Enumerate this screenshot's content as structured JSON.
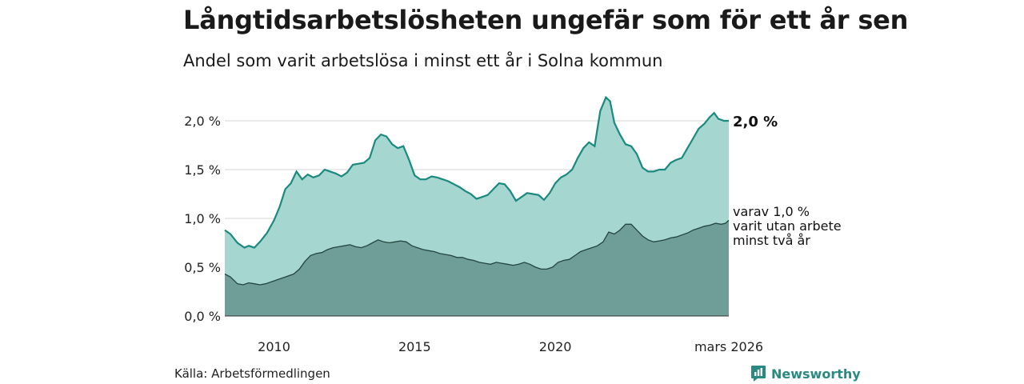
{
  "title": "Långtidsarbetslösheten ungefär som för ett år sen",
  "subtitle": "Andel som varit arbetslösa i minst ett år i Solna kommun",
  "source": "Källa: Arbetsförmedlingen",
  "brand": "Newsworthy",
  "colors": {
    "total_fill": "#a6d6d0",
    "total_line": "#1a8a7e",
    "sub_fill": "#6e9e97",
    "sub_line": "#234540",
    "grid": "#d6d6d6",
    "brand": "#2a8a80"
  },
  "annotations": {
    "total_end": "2,0 %",
    "sub_line1": "varav 1,0 %",
    "sub_line2": "varit utan arbete",
    "sub_line3": "minst två år"
  },
  "chart_data": {
    "type": "area",
    "title": "Långtidsarbetslösheten ungefär som för ett år sen",
    "subtitle": "Andel som varit arbetslösa i minst ett år i Solna kommun",
    "ylim": [
      0,
      2.3
    ],
    "y_ticks": [
      {
        "value": 0.0,
        "label": "0,0 %"
      },
      {
        "value": 0.5,
        "label": "0,5 %"
      },
      {
        "value": 1.0,
        "label": "1,0 %"
      },
      {
        "value": 1.5,
        "label": "1,5 %"
      },
      {
        "value": 2.0,
        "label": "2,0 %"
      }
    ],
    "xlim": [
      2008.25,
      2026.25
    ],
    "x_ticks": [
      {
        "value": 2010,
        "label": "2010"
      },
      {
        "value": 2015,
        "label": "2015"
      },
      {
        "value": 2020,
        "label": "2020"
      },
      {
        "value": 2026.17,
        "label": "mars 2026"
      }
    ],
    "series": [
      {
        "name": "Minst ett år",
        "points": [
          [
            2008.25,
            0.88
          ],
          [
            2008.45,
            0.84
          ],
          [
            2008.7,
            0.75
          ],
          [
            2008.95,
            0.7
          ],
          [
            2009.1,
            0.72
          ],
          [
            2009.3,
            0.7
          ],
          [
            2009.5,
            0.76
          ],
          [
            2009.75,
            0.85
          ],
          [
            2010.0,
            0.98
          ],
          [
            2010.2,
            1.12
          ],
          [
            2010.4,
            1.3
          ],
          [
            2010.6,
            1.36
          ],
          [
            2010.8,
            1.48
          ],
          [
            2011.0,
            1.4
          ],
          [
            2011.2,
            1.45
          ],
          [
            2011.4,
            1.42
          ],
          [
            2011.6,
            1.44
          ],
          [
            2011.8,
            1.5
          ],
          [
            2012.0,
            1.48
          ],
          [
            2012.2,
            1.46
          ],
          [
            2012.4,
            1.43
          ],
          [
            2012.6,
            1.47
          ],
          [
            2012.8,
            1.55
          ],
          [
            2013.0,
            1.56
          ],
          [
            2013.2,
            1.57
          ],
          [
            2013.4,
            1.62
          ],
          [
            2013.6,
            1.8
          ],
          [
            2013.8,
            1.86
          ],
          [
            2014.0,
            1.84
          ],
          [
            2014.2,
            1.76
          ],
          [
            2014.4,
            1.72
          ],
          [
            2014.6,
            1.74
          ],
          [
            2014.8,
            1.6
          ],
          [
            2015.0,
            1.44
          ],
          [
            2015.2,
            1.4
          ],
          [
            2015.4,
            1.4
          ],
          [
            2015.6,
            1.43
          ],
          [
            2015.8,
            1.42
          ],
          [
            2016.0,
            1.4
          ],
          [
            2016.2,
            1.38
          ],
          [
            2016.4,
            1.35
          ],
          [
            2016.6,
            1.32
          ],
          [
            2016.8,
            1.28
          ],
          [
            2017.0,
            1.25
          ],
          [
            2017.2,
            1.2
          ],
          [
            2017.4,
            1.22
          ],
          [
            2017.6,
            1.24
          ],
          [
            2017.8,
            1.3
          ],
          [
            2018.0,
            1.36
          ],
          [
            2018.2,
            1.35
          ],
          [
            2018.4,
            1.28
          ],
          [
            2018.6,
            1.18
          ],
          [
            2018.8,
            1.22
          ],
          [
            2019.0,
            1.26
          ],
          [
            2019.2,
            1.25
          ],
          [
            2019.4,
            1.24
          ],
          [
            2019.6,
            1.19
          ],
          [
            2019.8,
            1.26
          ],
          [
            2020.0,
            1.36
          ],
          [
            2020.2,
            1.42
          ],
          [
            2020.4,
            1.45
          ],
          [
            2020.6,
            1.5
          ],
          [
            2020.8,
            1.62
          ],
          [
            2021.0,
            1.72
          ],
          [
            2021.2,
            1.78
          ],
          [
            2021.4,
            1.74
          ],
          [
            2021.6,
            2.1
          ],
          [
            2021.8,
            2.24
          ],
          [
            2021.95,
            2.2
          ],
          [
            2022.1,
            1.98
          ],
          [
            2022.3,
            1.86
          ],
          [
            2022.5,
            1.76
          ],
          [
            2022.7,
            1.74
          ],
          [
            2022.9,
            1.66
          ],
          [
            2023.1,
            1.52
          ],
          [
            2023.3,
            1.48
          ],
          [
            2023.5,
            1.48
          ],
          [
            2023.7,
            1.5
          ],
          [
            2023.9,
            1.5
          ],
          [
            2024.1,
            1.57
          ],
          [
            2024.3,
            1.6
          ],
          [
            2024.5,
            1.62
          ],
          [
            2024.7,
            1.72
          ],
          [
            2024.9,
            1.82
          ],
          [
            2025.1,
            1.92
          ],
          [
            2025.3,
            1.97
          ],
          [
            2025.5,
            2.04
          ],
          [
            2025.65,
            2.08
          ],
          [
            2025.8,
            2.02
          ],
          [
            2026.0,
            2.0
          ],
          [
            2026.17,
            2.0
          ]
        ]
      },
      {
        "name": "Minst två år",
        "points": [
          [
            2008.25,
            0.43
          ],
          [
            2008.45,
            0.4
          ],
          [
            2008.7,
            0.33
          ],
          [
            2008.9,
            0.32
          ],
          [
            2009.1,
            0.34
          ],
          [
            2009.3,
            0.33
          ],
          [
            2009.5,
            0.32
          ],
          [
            2009.7,
            0.33
          ],
          [
            2010.0,
            0.36
          ],
          [
            2010.2,
            0.38
          ],
          [
            2010.4,
            0.4
          ],
          [
            2010.7,
            0.43
          ],
          [
            2010.9,
            0.48
          ],
          [
            2011.1,
            0.56
          ],
          [
            2011.3,
            0.62
          ],
          [
            2011.5,
            0.64
          ],
          [
            2011.7,
            0.65
          ],
          [
            2011.9,
            0.68
          ],
          [
            2012.1,
            0.7
          ],
          [
            2012.3,
            0.71
          ],
          [
            2012.5,
            0.72
          ],
          [
            2012.7,
            0.73
          ],
          [
            2012.9,
            0.71
          ],
          [
            2013.1,
            0.7
          ],
          [
            2013.3,
            0.72
          ],
          [
            2013.5,
            0.75
          ],
          [
            2013.7,
            0.78
          ],
          [
            2013.9,
            0.76
          ],
          [
            2014.1,
            0.75
          ],
          [
            2014.3,
            0.76
          ],
          [
            2014.5,
            0.77
          ],
          [
            2014.7,
            0.76
          ],
          [
            2014.9,
            0.72
          ],
          [
            2015.1,
            0.7
          ],
          [
            2015.3,
            0.68
          ],
          [
            2015.5,
            0.67
          ],
          [
            2015.7,
            0.66
          ],
          [
            2015.9,
            0.64
          ],
          [
            2016.1,
            0.63
          ],
          [
            2016.3,
            0.62
          ],
          [
            2016.5,
            0.6
          ],
          [
            2016.7,
            0.6
          ],
          [
            2016.9,
            0.58
          ],
          [
            2017.1,
            0.57
          ],
          [
            2017.3,
            0.55
          ],
          [
            2017.5,
            0.54
          ],
          [
            2017.7,
            0.53
          ],
          [
            2017.9,
            0.55
          ],
          [
            2018.1,
            0.54
          ],
          [
            2018.3,
            0.53
          ],
          [
            2018.5,
            0.52
          ],
          [
            2018.7,
            0.53
          ],
          [
            2018.9,
            0.55
          ],
          [
            2019.1,
            0.53
          ],
          [
            2019.3,
            0.5
          ],
          [
            2019.5,
            0.48
          ],
          [
            2019.7,
            0.48
          ],
          [
            2019.9,
            0.5
          ],
          [
            2020.1,
            0.55
          ],
          [
            2020.3,
            0.57
          ],
          [
            2020.5,
            0.58
          ],
          [
            2020.7,
            0.62
          ],
          [
            2020.9,
            0.66
          ],
          [
            2021.1,
            0.68
          ],
          [
            2021.3,
            0.7
          ],
          [
            2021.5,
            0.72
          ],
          [
            2021.7,
            0.76
          ],
          [
            2021.9,
            0.86
          ],
          [
            2022.1,
            0.84
          ],
          [
            2022.3,
            0.88
          ],
          [
            2022.5,
            0.94
          ],
          [
            2022.7,
            0.94
          ],
          [
            2022.9,
            0.88
          ],
          [
            2023.1,
            0.82
          ],
          [
            2023.3,
            0.78
          ],
          [
            2023.5,
            0.76
          ],
          [
            2023.7,
            0.77
          ],
          [
            2023.9,
            0.78
          ],
          [
            2024.1,
            0.8
          ],
          [
            2024.3,
            0.81
          ],
          [
            2024.5,
            0.83
          ],
          [
            2024.7,
            0.85
          ],
          [
            2024.9,
            0.88
          ],
          [
            2025.1,
            0.9
          ],
          [
            2025.3,
            0.92
          ],
          [
            2025.5,
            0.93
          ],
          [
            2025.7,
            0.95
          ],
          [
            2025.9,
            0.94
          ],
          [
            2026.05,
            0.95
          ],
          [
            2026.17,
            0.98
          ]
        ]
      }
    ]
  }
}
